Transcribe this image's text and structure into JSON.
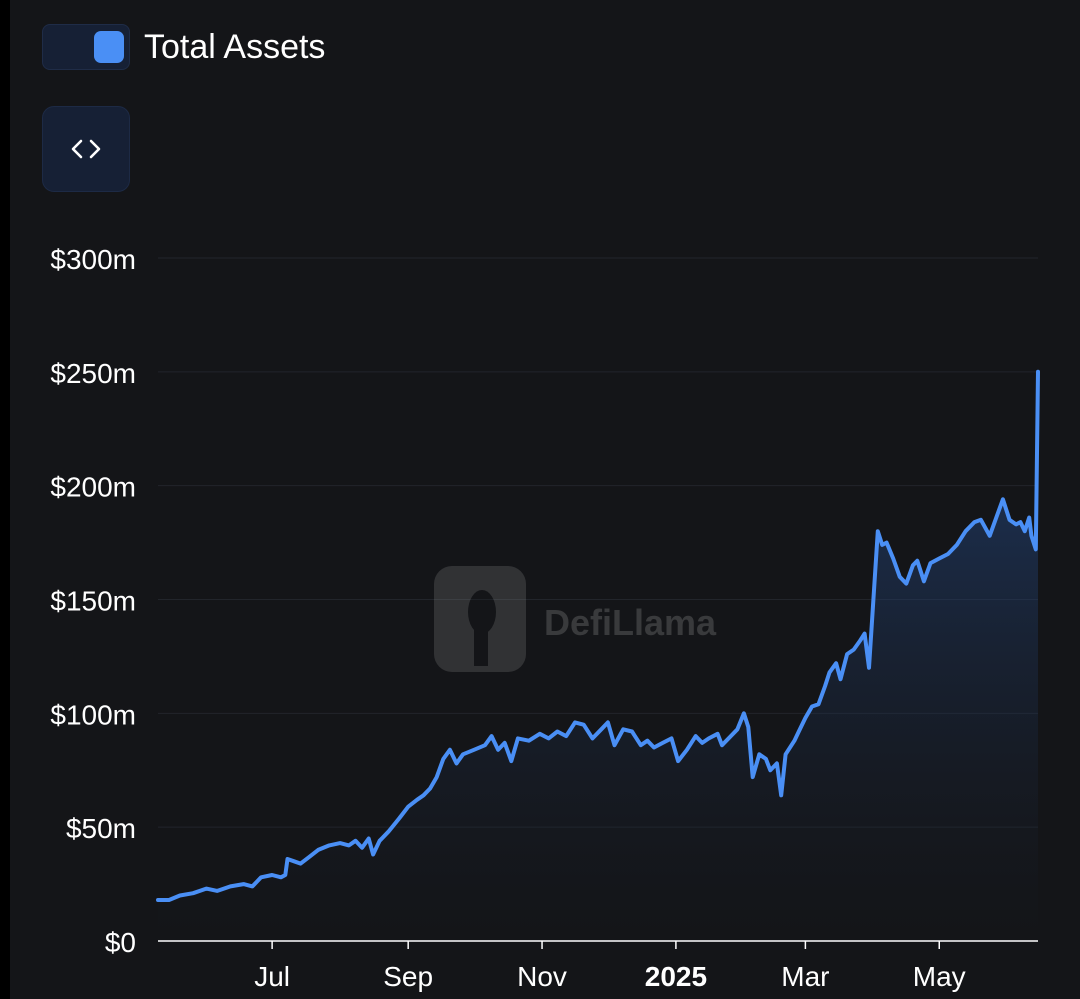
{
  "legend": {
    "label": "Total Assets",
    "color": "#4a8ff5"
  },
  "embed_button": {
    "icon": "code-icon"
  },
  "watermark": {
    "text": "DefiLlama"
  },
  "colors": {
    "background": "#141518",
    "line": "#4a8ff5",
    "grid": "#22252b",
    "axis_text": "#ffffff"
  },
  "chart_data": {
    "type": "area",
    "title": "",
    "xlabel": "",
    "ylabel": "",
    "ylim": [
      0,
      300
    ],
    "y_unit": "$m",
    "yticks": [
      {
        "value": 0,
        "label": "$0"
      },
      {
        "value": 50,
        "label": "$50m"
      },
      {
        "value": 100,
        "label": "$100m"
      },
      {
        "value": 150,
        "label": "$150m"
      },
      {
        "value": 200,
        "label": "$200m"
      },
      {
        "value": 250,
        "label": "$250m"
      },
      {
        "value": 300,
        "label": "$300m"
      }
    ],
    "xrange": [
      "2024-05-10",
      "2025-06-15"
    ],
    "xticks": [
      {
        "date": "2024-07-01",
        "label": "Jul",
        "bold": false
      },
      {
        "date": "2024-09-01",
        "label": "Sep",
        "bold": false
      },
      {
        "date": "2024-11-01",
        "label": "Nov",
        "bold": false
      },
      {
        "date": "2025-01-01",
        "label": "2025",
        "bold": true
      },
      {
        "date": "2025-03-01",
        "label": "Mar",
        "bold": false
      },
      {
        "date": "2025-05-01",
        "label": "May",
        "bold": false
      }
    ],
    "grid": true,
    "legend_position": "top-left",
    "series": [
      {
        "name": "Total Assets",
        "points": [
          [
            "2024-05-10",
            18
          ],
          [
            "2024-05-15",
            18
          ],
          [
            "2024-05-20",
            20
          ],
          [
            "2024-05-26",
            21
          ],
          [
            "2024-06-01",
            23
          ],
          [
            "2024-06-06",
            22
          ],
          [
            "2024-06-12",
            24
          ],
          [
            "2024-06-18",
            25
          ],
          [
            "2024-06-22",
            24
          ],
          [
            "2024-06-26",
            28
          ],
          [
            "2024-07-01",
            29
          ],
          [
            "2024-07-05",
            28
          ],
          [
            "2024-07-07",
            29
          ],
          [
            "2024-07-08",
            36
          ],
          [
            "2024-07-11",
            35
          ],
          [
            "2024-07-14",
            34
          ],
          [
            "2024-07-18",
            37
          ],
          [
            "2024-07-22",
            40
          ],
          [
            "2024-07-27",
            42
          ],
          [
            "2024-08-01",
            43
          ],
          [
            "2024-08-05",
            42
          ],
          [
            "2024-08-08",
            44
          ],
          [
            "2024-08-11",
            41
          ],
          [
            "2024-08-14",
            45
          ],
          [
            "2024-08-16",
            38
          ],
          [
            "2024-08-19",
            44
          ],
          [
            "2024-08-23",
            48
          ],
          [
            "2024-08-28",
            54
          ],
          [
            "2024-09-01",
            59
          ],
          [
            "2024-09-05",
            62
          ],
          [
            "2024-09-08",
            64
          ],
          [
            "2024-09-11",
            67
          ],
          [
            "2024-09-14",
            72
          ],
          [
            "2024-09-17",
            80
          ],
          [
            "2024-09-20",
            84
          ],
          [
            "2024-09-23",
            78
          ],
          [
            "2024-09-26",
            82
          ],
          [
            "2024-10-01",
            84
          ],
          [
            "2024-10-06",
            86
          ],
          [
            "2024-10-09",
            90
          ],
          [
            "2024-10-12",
            84
          ],
          [
            "2024-10-15",
            87
          ],
          [
            "2024-10-18",
            79
          ],
          [
            "2024-10-21",
            89
          ],
          [
            "2024-10-26",
            88
          ],
          [
            "2024-10-31",
            91
          ],
          [
            "2024-11-04",
            89
          ],
          [
            "2024-11-08",
            92
          ],
          [
            "2024-11-12",
            90
          ],
          [
            "2024-11-16",
            96
          ],
          [
            "2024-11-20",
            95
          ],
          [
            "2024-11-24",
            89
          ],
          [
            "2024-11-28",
            93
          ],
          [
            "2024-12-01",
            96
          ],
          [
            "2024-12-04",
            86
          ],
          [
            "2024-12-08",
            93
          ],
          [
            "2024-12-12",
            92
          ],
          [
            "2024-12-16",
            86
          ],
          [
            "2024-12-19",
            88
          ],
          [
            "2024-12-22",
            85
          ],
          [
            "2024-12-26",
            87
          ],
          [
            "2024-12-30",
            89
          ],
          [
            "2025-01-02",
            79
          ],
          [
            "2025-01-06",
            84
          ],
          [
            "2025-01-10",
            90
          ],
          [
            "2025-01-13",
            87
          ],
          [
            "2025-01-16",
            89
          ],
          [
            "2025-01-20",
            91
          ],
          [
            "2025-01-22",
            86
          ],
          [
            "2025-01-26",
            90
          ],
          [
            "2025-01-29",
            93
          ],
          [
            "2025-02-01",
            100
          ],
          [
            "2025-02-03",
            94
          ],
          [
            "2025-02-05",
            72
          ],
          [
            "2025-02-08",
            82
          ],
          [
            "2025-02-11",
            80
          ],
          [
            "2025-02-13",
            75
          ],
          [
            "2025-02-16",
            78
          ],
          [
            "2025-02-18",
            64
          ],
          [
            "2025-02-20",
            82
          ],
          [
            "2025-02-24",
            88
          ],
          [
            "2025-02-26",
            92
          ],
          [
            "2025-03-01",
            98
          ],
          [
            "2025-03-04",
            103
          ],
          [
            "2025-03-07",
            104
          ],
          [
            "2025-03-10",
            112
          ],
          [
            "2025-03-12",
            118
          ],
          [
            "2025-03-15",
            122
          ],
          [
            "2025-03-17",
            115
          ],
          [
            "2025-03-20",
            126
          ],
          [
            "2025-03-23",
            128
          ],
          [
            "2025-03-26",
            132
          ],
          [
            "2025-03-28",
            135
          ],
          [
            "2025-03-30",
            120
          ],
          [
            "2025-04-01",
            150
          ],
          [
            "2025-04-03",
            180
          ],
          [
            "2025-04-05",
            174
          ],
          [
            "2025-04-07",
            175
          ],
          [
            "2025-04-10",
            168
          ],
          [
            "2025-04-13",
            160
          ],
          [
            "2025-04-16",
            157
          ],
          [
            "2025-04-19",
            165
          ],
          [
            "2025-04-21",
            167
          ],
          [
            "2025-04-24",
            158
          ],
          [
            "2025-04-27",
            166
          ],
          [
            "2025-05-01",
            168
          ],
          [
            "2025-05-05",
            170
          ],
          [
            "2025-05-09",
            174
          ],
          [
            "2025-05-13",
            180
          ],
          [
            "2025-05-17",
            184
          ],
          [
            "2025-05-20",
            185
          ],
          [
            "2025-05-24",
            178
          ],
          [
            "2025-05-27",
            186
          ],
          [
            "2025-05-30",
            194
          ],
          [
            "2025-06-02",
            185
          ],
          [
            "2025-06-05",
            183
          ],
          [
            "2025-06-07",
            184
          ],
          [
            "2025-06-09",
            180
          ],
          [
            "2025-06-11",
            186
          ],
          [
            "2025-06-12",
            178
          ],
          [
            "2025-06-14",
            172
          ],
          [
            "2025-06-15",
            250
          ]
        ]
      }
    ]
  }
}
